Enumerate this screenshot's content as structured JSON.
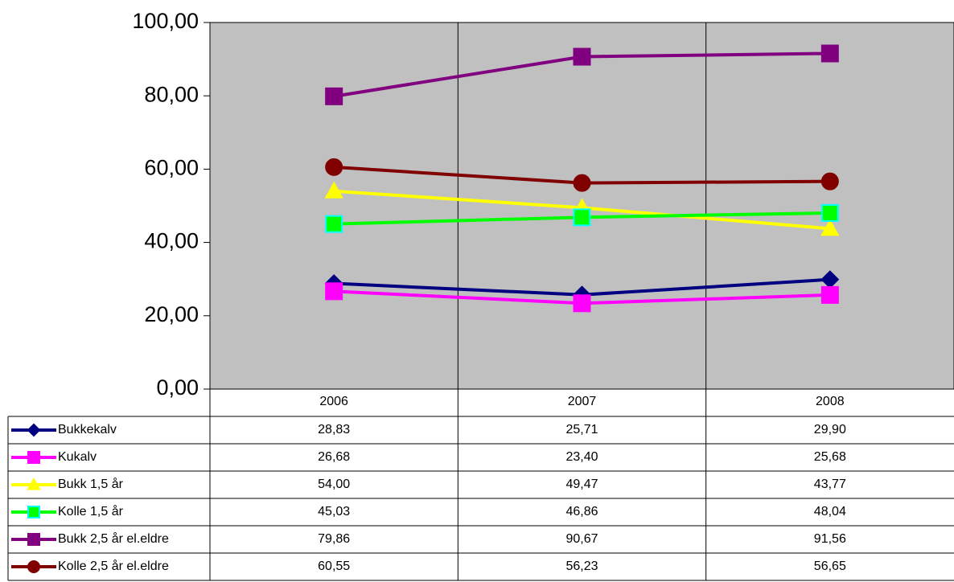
{
  "chart_data": {
    "type": "line",
    "categories": [
      "2006",
      "2007",
      "2008"
    ],
    "series": [
      {
        "name": "Bukkekalv",
        "color": "#000080",
        "marker": "diamond",
        "values": [
          28.83,
          25.71,
          29.9
        ],
        "value_labels": [
          "28,83",
          "25,71",
          "29,90"
        ]
      },
      {
        "name": "Kukalv",
        "color": "#ff00ff",
        "marker": "square",
        "values": [
          26.68,
          23.4,
          25.68
        ],
        "value_labels": [
          "26,68",
          "23,40",
          "25,68"
        ]
      },
      {
        "name": "Bukk 1,5 år",
        "color": "#ffff00",
        "marker": "triangle",
        "values": [
          54.0,
          49.47,
          43.77
        ],
        "value_labels": [
          "54,00",
          "49,47",
          "43,77"
        ]
      },
      {
        "name": "Kolle 1,5 år",
        "color": "#00ff00",
        "marker": "square",
        "values": [
          45.03,
          46.86,
          48.04
        ],
        "value_labels": [
          "45,03",
          "46,86",
          "48,04"
        ]
      },
      {
        "name": "Bukk 2,5 år el.eldre",
        "color": "#800080",
        "marker": "square",
        "values": [
          79.86,
          90.67,
          91.56
        ],
        "value_labels": [
          "79,86",
          "90,67",
          "91,56"
        ]
      },
      {
        "name": "Kolle 2,5 år el.eldre",
        "color": "#800000",
        "marker": "circle",
        "values": [
          60.55,
          56.23,
          56.65
        ],
        "value_labels": [
          "60,55",
          "56,23",
          "56,65"
        ]
      }
    ],
    "ylim": [
      0,
      100
    ],
    "yticks": [
      {
        "value": 0,
        "label": "0,00"
      },
      {
        "value": 20,
        "label": "20,00"
      },
      {
        "value": 40,
        "label": "40,00"
      },
      {
        "value": 60,
        "label": "60,00"
      },
      {
        "value": 80,
        "label": "80,00"
      },
      {
        "value": 100,
        "label": "100,00"
      }
    ],
    "plot_background": "#c0c0c0",
    "data_table": true
  }
}
